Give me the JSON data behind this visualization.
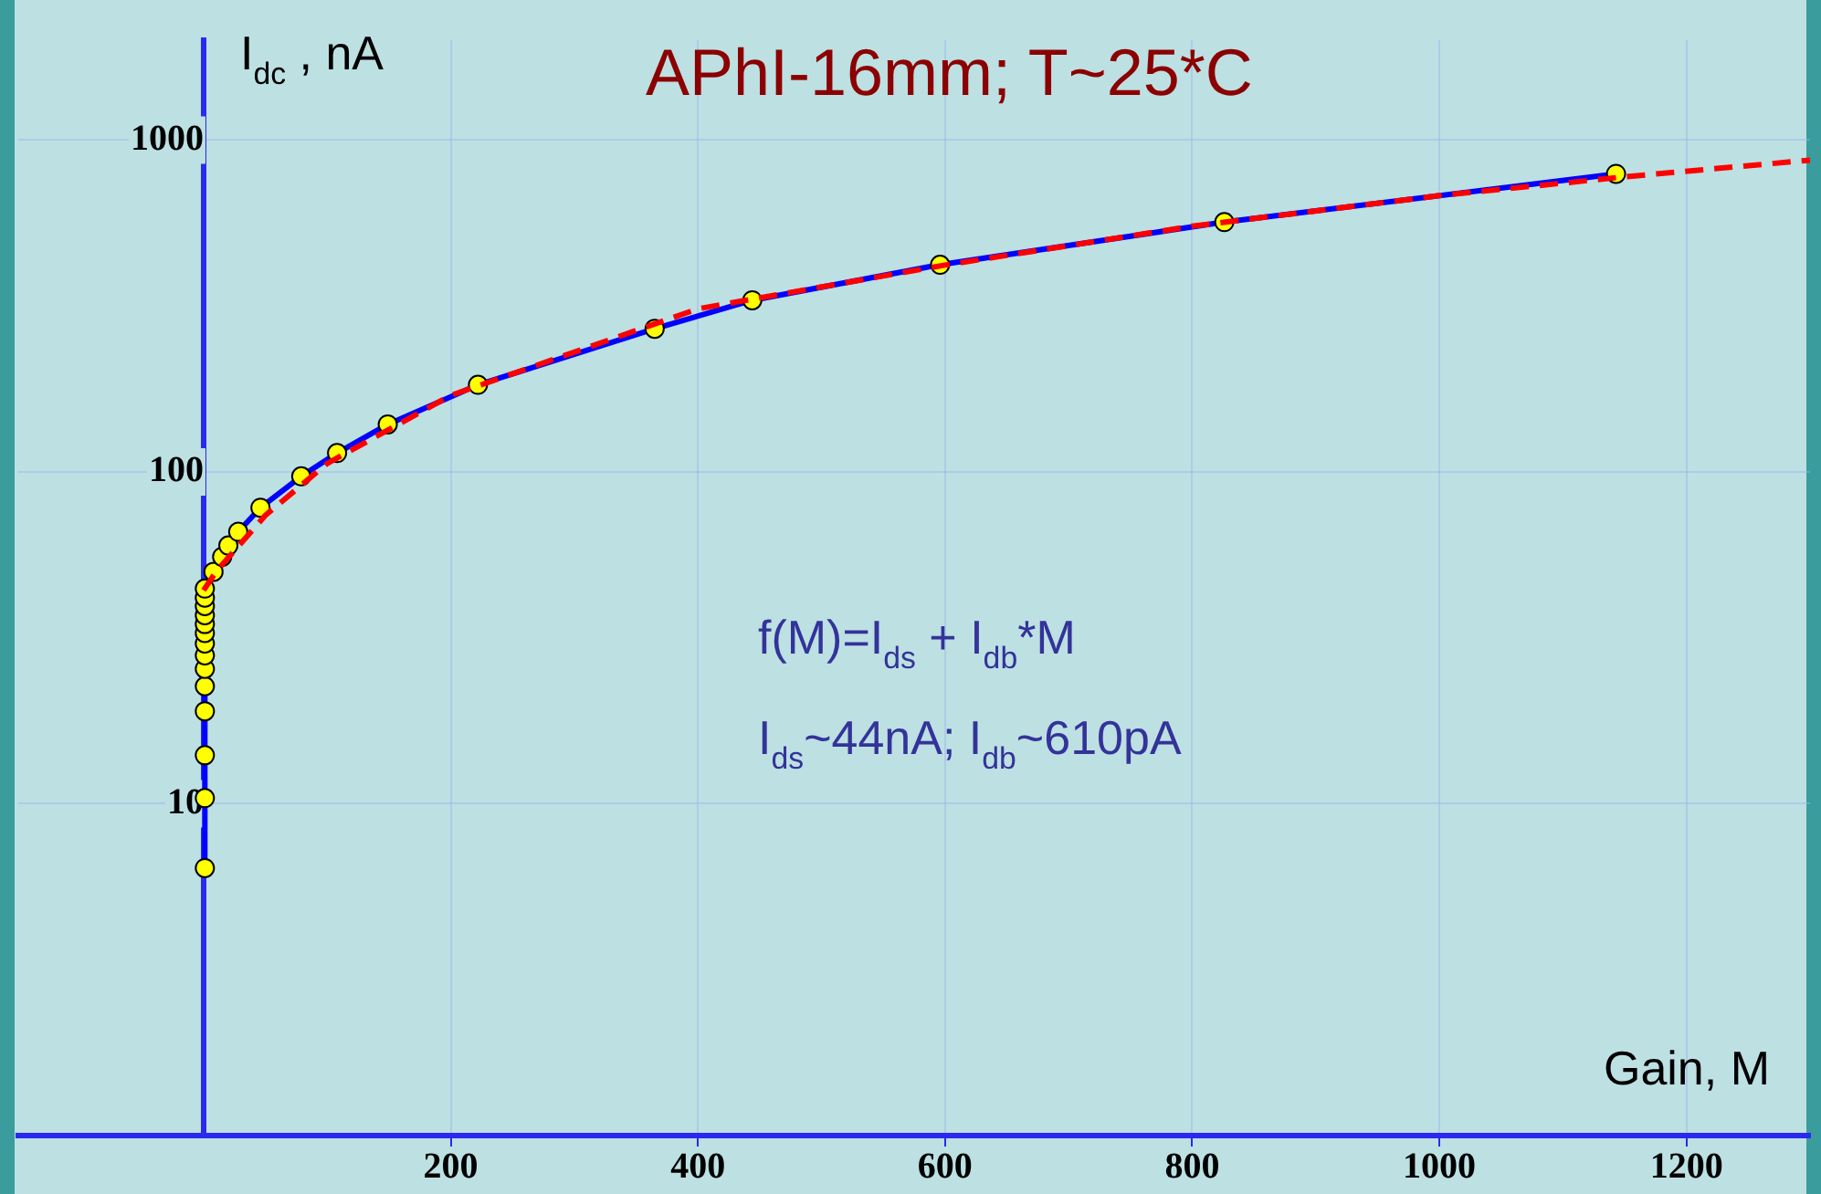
{
  "chart_data": {
    "type": "line",
    "title": "APhI-16mm; T~25*C",
    "xlabel": "Gain, M",
    "ylabel": "I$_{dc}$ , nA",
    "annotations": [
      "f(M)=I$_{ds}$ + I$_{db}$*M",
      "I$_{ds}$~44nA; I$_{db}$~610pA"
    ],
    "log": "y",
    "grid": true,
    "legend": false,
    "xlim": [
      -150,
      1300
    ],
    "xticks": [
      200,
      400,
      600,
      800,
      1000,
      1200
    ],
    "ylim": [
      1,
      2000
    ],
    "yticks": [
      10,
      100,
      1000
    ],
    "series": [
      {
        "type": "line",
        "color": "#0000ff",
        "marker": "circle",
        "line_style": "solid",
        "x": [
          1,
          1,
          1,
          1,
          1,
          1,
          1,
          1,
          1,
          1,
          1,
          1,
          1,
          1,
          8,
          15,
          20,
          28,
          46,
          79,
          108,
          149,
          222,
          365,
          444,
          596,
          826,
          1143
        ],
        "values": [
          6.4,
          10.4,
          14,
          19,
          22.6,
          25.5,
          28,
          30.4,
          32.7,
          34.8,
          37,
          39.4,
          41.8,
          44.5,
          50,
          55.5,
          60,
          66,
          78,
          97,
          114,
          139,
          183,
          270,
          329,
          421,
          566,
          791
        ]
      },
      {
        "type": "line",
        "color": "#ff0000",
        "marker": "none",
        "line_style": "dashed",
        "x": [
          0,
          10,
          50,
          100,
          200,
          400,
          600,
          800,
          1000,
          1150,
          1300
        ],
        "values": [
          44,
          50,
          74,
          106,
          170,
          310,
          420,
          550,
          680,
          775,
          870
        ]
      }
    ]
  }
}
